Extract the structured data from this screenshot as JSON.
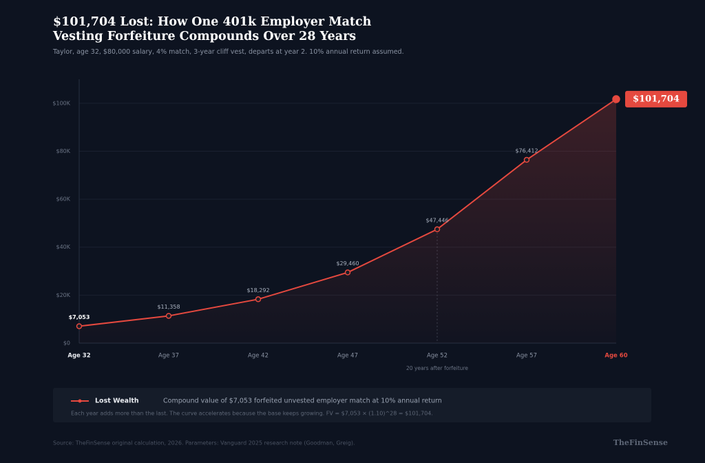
{
  "chart_data": {
    "type": "line",
    "title": "$101,704 Lost: How One 401k Employer Match Vesting Forfeiture Compounds Over 28 Years",
    "subtitle": "Taylor, age 32, $80,000 salary, 4% match, 3-year cliff vest, departs at year 2. 10% annual return assumed.",
    "categories": [
      "Age 32",
      "Age 37",
      "Age 42",
      "Age 47",
      "Age 52",
      "Age 57",
      "Age 60"
    ],
    "series": [
      {
        "name": "Lost Wealth",
        "color": "#e5493f",
        "values": [
          7053,
          11358,
          18292,
          29460,
          47446,
          76412,
          101704
        ],
        "value_labels": [
          "$7,053",
          "$11,358",
          "$18,292",
          "$29,460",
          "$47,446",
          "$76,412",
          "$101,704"
        ]
      }
    ],
    "ylim": [
      0,
      110000
    ],
    "yticks": [
      {
        "value": 0,
        "label": "$0"
      },
      {
        "value": 20000,
        "label": "$20K"
      },
      {
        "value": 40000,
        "label": "$40K"
      },
      {
        "value": 60000,
        "label": "$60K"
      },
      {
        "value": 80000,
        "label": "$80K"
      },
      {
        "value": 100000,
        "label": "$100K"
      }
    ],
    "grid": true,
    "annotation": "20 years after forfeiture",
    "legend_description": "Compound value of $7,053 forfeited unvested employer match at 10% annual return",
    "note": "Each year adds more than the last. The curve accelerates because the base keeps growing. FV = $7,053 × (1.10)^28 = $101,704.",
    "source": "Source: TheFinSense original calculation, 2026. Parameters: Vanguard 2025 research note (Goodman, Greig).",
    "brand": "TheFinSense"
  }
}
